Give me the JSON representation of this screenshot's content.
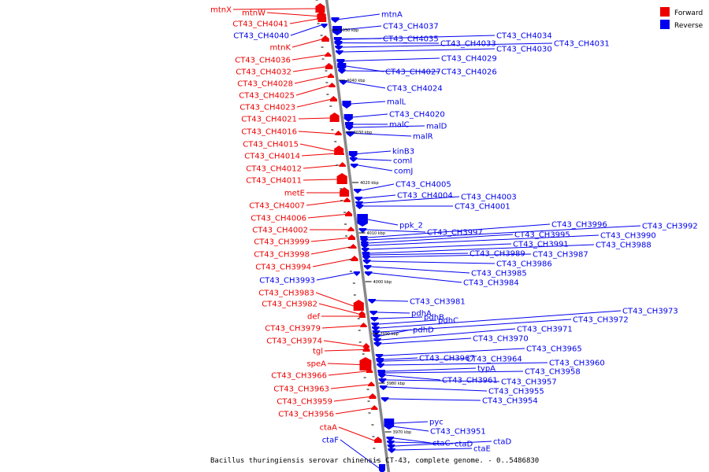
{
  "caption": "Bacillus thuringiensis serovar chinensis CT-43, complete genome. - 0..5486830",
  "legend": [
    {
      "label": "Forward",
      "color": "#ee0000"
    },
    {
      "label": "Reverse",
      "color": "#0000ee"
    }
  ],
  "colors": {
    "forward": "#ee0000",
    "reverse": "#0000ee",
    "backbone": "#888888"
  },
  "ticks": [
    "4050 kbp",
    "4040 kbp",
    "4030 kbp",
    "4020 kbp",
    "4010 kbp",
    "4000 kbp",
    "3990 kbp",
    "3980 kbp",
    "3970 kbp"
  ],
  "forward_genes": [
    "mtnX",
    "mtnW",
    "CT43_CH4041",
    "mtnK",
    "CT43_CH4036",
    "CT43_CH4032",
    "CT43_CH4028",
    "CT43_CH4025",
    "CT43_CH4023",
    "CT43_CH4021",
    "CT43_CH4016",
    "CT43_CH4015",
    "CT43_CH4014",
    "CT43_CH4012",
    "CT43_CH4011",
    "metE",
    "CT43_CH4007",
    "CT43_CH4006",
    "CT43_CH4002",
    "CT43_CH3999",
    "CT43_CH3998",
    "CT43_CH3994",
    "CT43_CH3983",
    "CT43_CH3982",
    "def",
    "CT43_CH3979",
    "CT43_CH3974",
    "tgl",
    "speA",
    "CT43_CH3966",
    "CT43_CH3963",
    "CT43_CH3959",
    "CT43_CH3956",
    "ctaA"
  ],
  "reverse_genes": [
    "CT43_CH4040",
    "CT43_CH3993",
    "ctaF",
    "mtnA",
    "CT43_CH4037",
    "CT43_CH4035",
    "CT43_CH4033",
    "CT43_CH4034",
    "CT43_CH4031",
    "CT43_CH4030",
    "CT43_CH4029",
    "CT43_CH4027",
    "CT43_CH4026",
    "CT43_CH4024",
    "malL",
    "CT43_CH4020",
    "malC",
    "malD",
    "malR",
    "kinB3",
    "comI",
    "comJ",
    "CT43_CH4005",
    "CT43_CH4004",
    "CT43_CH4003",
    "CT43_CH4001",
    "ppk_2",
    "CT43_CH3997",
    "CT43_CH3996",
    "CT43_CH3992",
    "CT43_CH3995",
    "CT43_CH3990",
    "CT43_CH3991",
    "CT43_CH3988",
    "CT43_CH3989",
    "CT43_CH3987",
    "CT43_CH3986",
    "CT43_CH3985",
    "CT43_CH3984",
    "CT43_CH3981",
    "pdhA",
    "pdhB",
    "pdhC",
    "CT43_CH3973",
    "CT43_CH3972",
    "pdhD",
    "CT43_CH3971",
    "CT43_CH3970",
    "CT43_CH3965",
    "CT43_CH3967",
    "CT43_CH3964",
    "CT43_CH3960",
    "typA",
    "CT43_CH3958",
    "CT43_CH3961",
    "CT43_CH3957",
    "CT43_CH3955",
    "CT43_CH3954",
    "pyc",
    "CT43_CH3951",
    "ctaC",
    "ctaD",
    "ctaD",
    "ctaE"
  ]
}
